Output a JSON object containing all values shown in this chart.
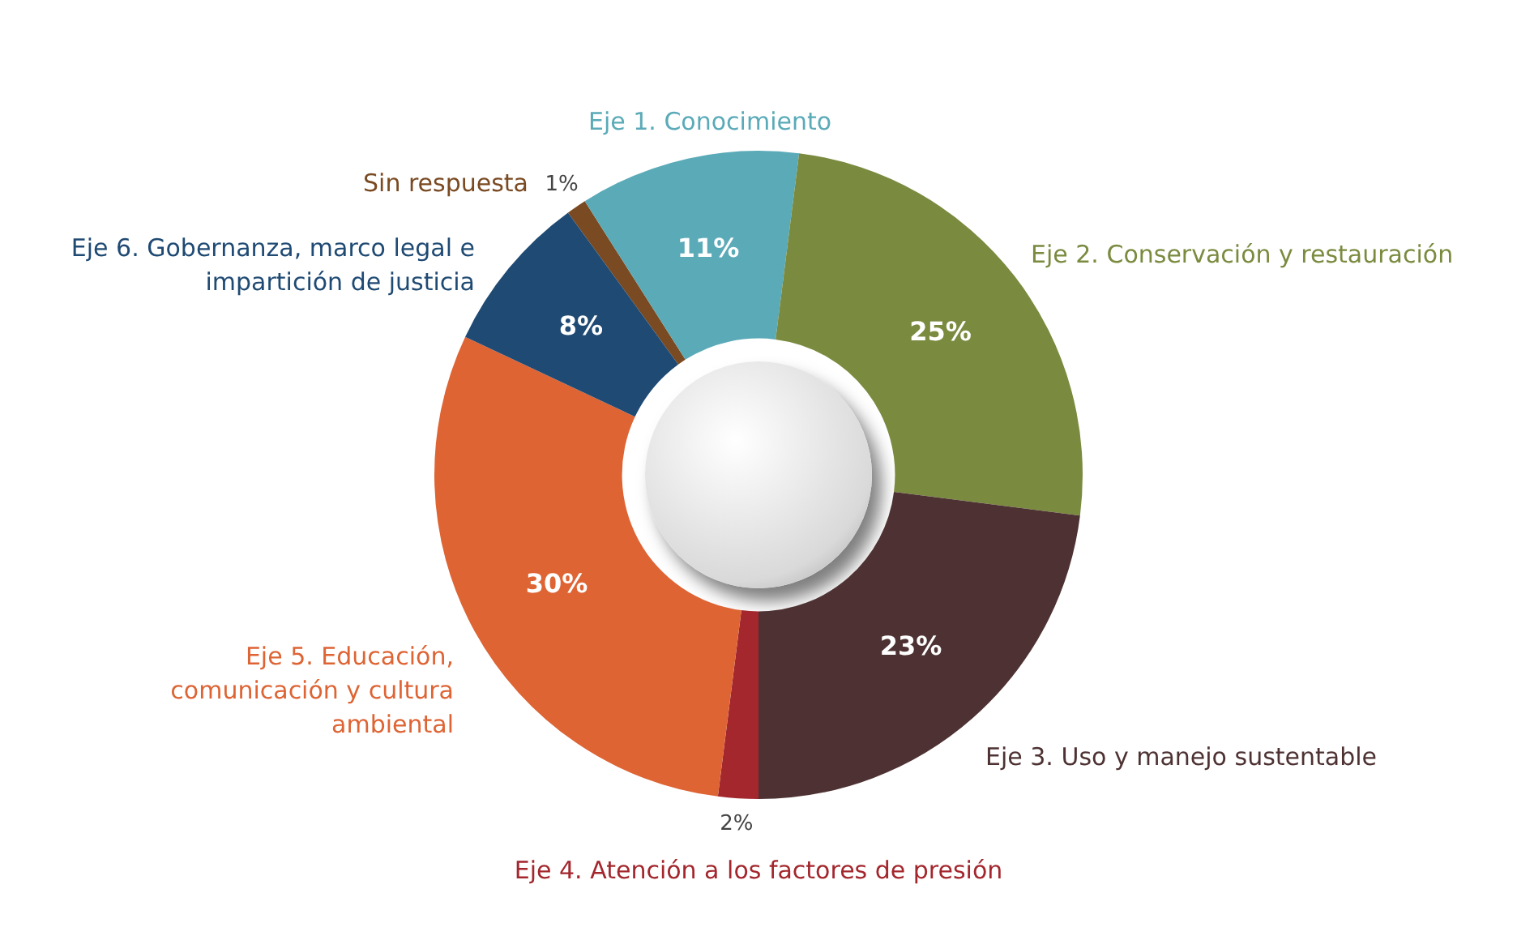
{
  "chart_data": {
    "type": "donut",
    "categories": [
      "Sin respuesta",
      "Eje 1. Conocimiento",
      "Eje 2. Conservación y restauración",
      "Eje 3. Uso y manejo sustentable",
      "Eje 4. Atención a los factores de presión",
      "Eje 5. Educación, comunicación y cultura ambiental",
      "Eje 6. Gobernanza, marco legal e impartición de justicia"
    ],
    "values": [
      1,
      11,
      25,
      23,
      2,
      30,
      8
    ],
    "value_labels": [
      "1%",
      "11%",
      "25%",
      "23%",
      "2%",
      "30%",
      "8%"
    ],
    "colors": [
      "#7a4a22",
      "#5aaab8",
      "#7a8b40",
      "#4e3233",
      "#a3272d",
      "#de6434",
      "#1f4a73"
    ],
    "legend": false
  }
}
